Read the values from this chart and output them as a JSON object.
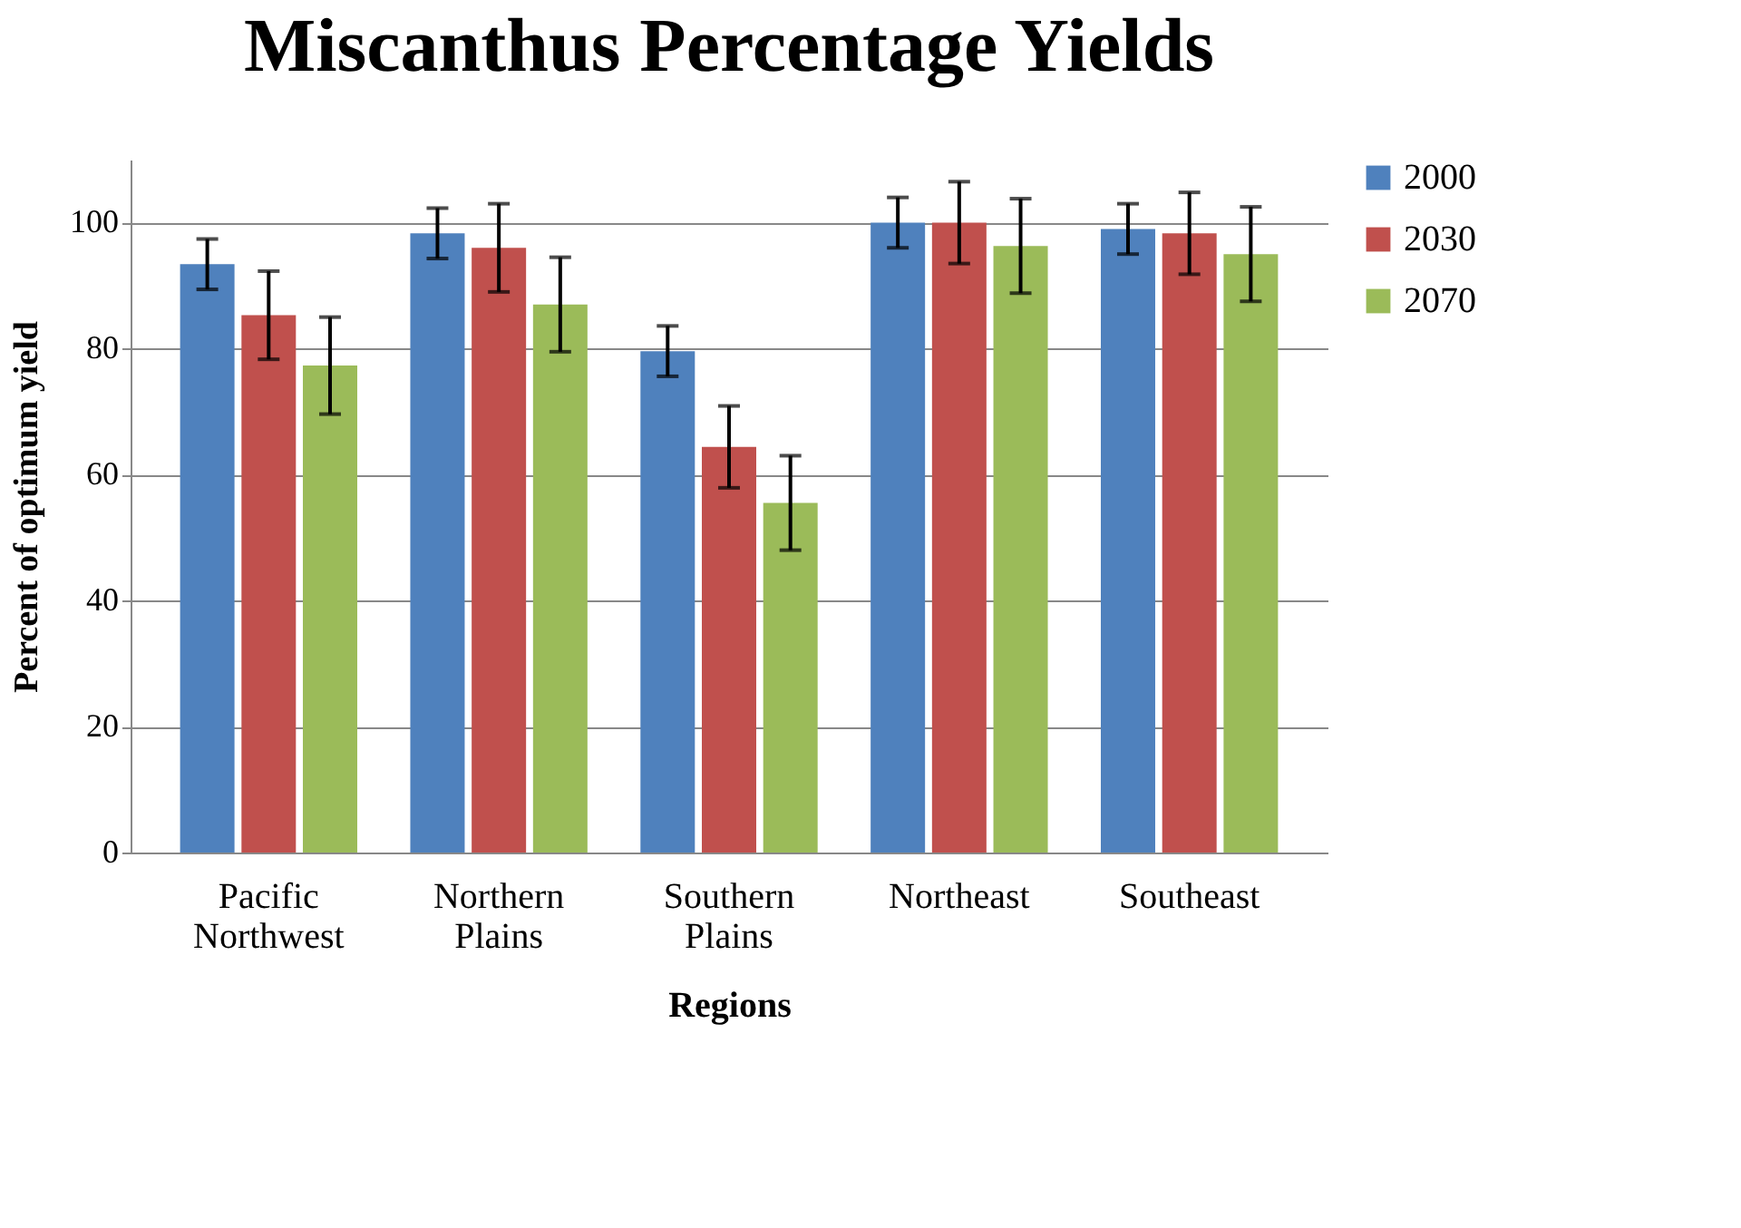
{
  "chart_data": {
    "type": "bar",
    "title": "Miscanthus Percentage Yields",
    "xlabel": "Regions",
    "ylabel": "Percent of optimum yield",
    "categories": [
      "Pacific Northwest",
      "Northern Plains",
      "Southern Plains",
      "Northeast",
      "Southeast"
    ],
    "series": [
      {
        "name": "2000",
        "color": "#4f81bd",
        "values": [
          93.4,
          98.3,
          79.6,
          100,
          99
        ],
        "errors": [
          4,
          4,
          4,
          4,
          4
        ]
      },
      {
        "name": "2030",
        "color": "#c0504d",
        "values": [
          85.3,
          96,
          64.4,
          100,
          98.3
        ],
        "errors": [
          7,
          7,
          6.5,
          6.5,
          6.5
        ]
      },
      {
        "name": "2070",
        "color": "#9bbb59",
        "values": [
          77.3,
          87,
          55.5,
          96.3,
          95
        ],
        "errors": [
          7.7,
          7.5,
          7.5,
          7.5,
          7.5
        ]
      }
    ],
    "ylim": [
      0,
      110
    ],
    "yticks": [
      0,
      20,
      40,
      60,
      80,
      100
    ],
    "grid": "y",
    "legend": "right"
  }
}
